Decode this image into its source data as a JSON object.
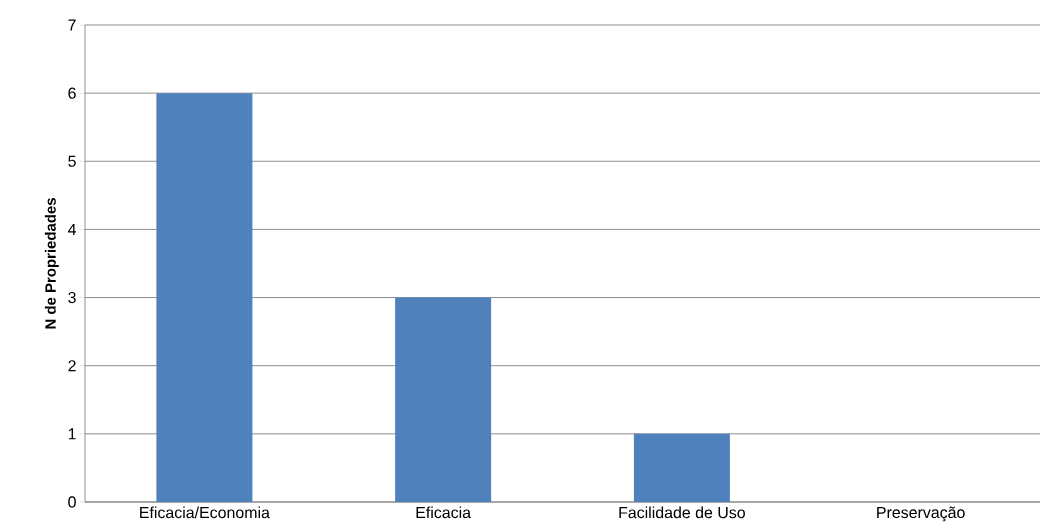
{
  "chart_data": {
    "type": "bar",
    "ylabel": "N de Propriedades",
    "categories": [
      "Eficacia/Economia",
      "Eficacia",
      "Facilidade de Uso",
      "Preservação"
    ],
    "values": [
      6,
      3,
      1,
      0
    ],
    "color": "#4f81bd",
    "ylim": [
      0,
      7
    ],
    "yticks": [
      0,
      1,
      2,
      3,
      4,
      5,
      6,
      7
    ],
    "grid": "y"
  }
}
